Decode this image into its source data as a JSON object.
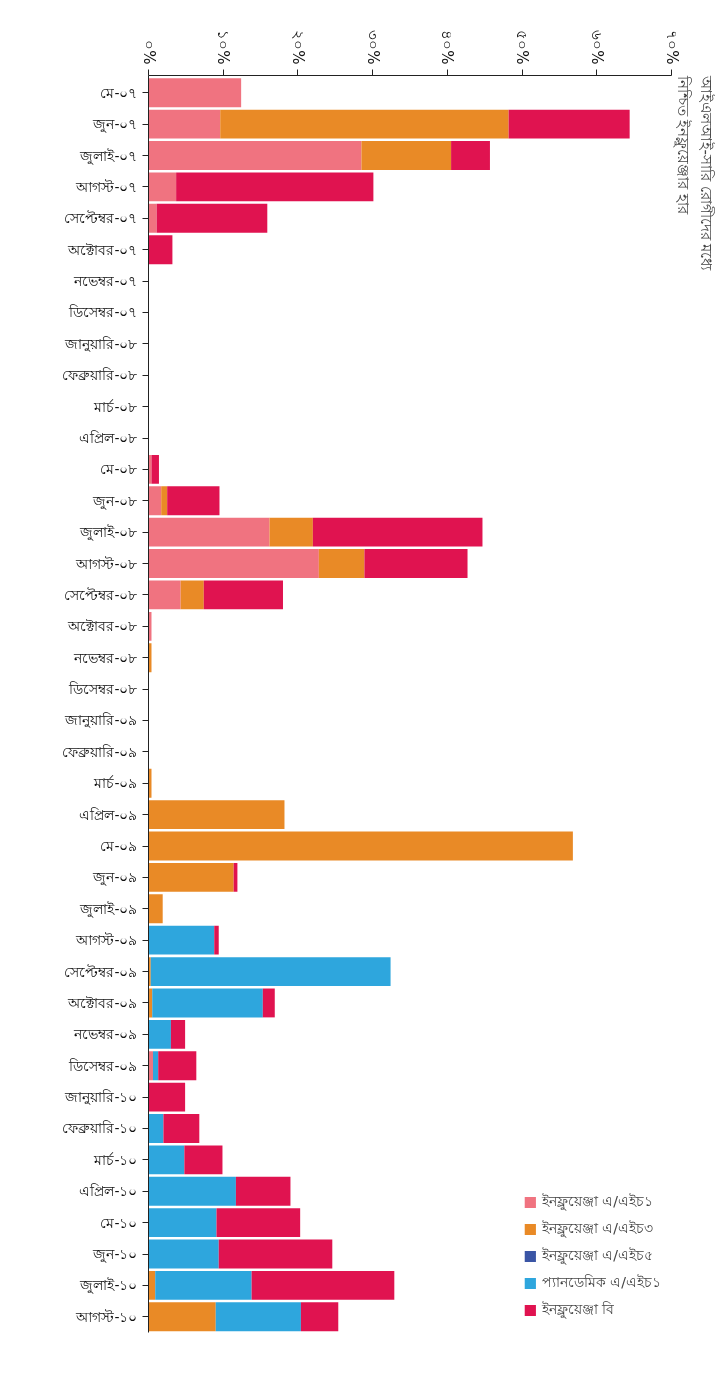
{
  "chart_data": {
    "type": "bar",
    "orientation": "horizontal",
    "stacked": true,
    "title": "আইএলআই-সারি রোগীদের মধ্যে",
    "subtitle": "নিশ্চিত ইনফ্লুয়েঞ্জার হার",
    "categories": [
      "মে-০৭",
      "জুন-০৭",
      "জুলাই-০৭",
      "আগস্ট-০৭",
      "সেপ্টেম্বর-০৭",
      "অক্টোবর-০৭",
      "নভেম্বর-০৭",
      "ডিসেম্বর-০৭",
      "জানুয়ারি-০৮",
      "ফেব্রুয়ারি-০৮",
      "মার্চ-০৮",
      "এপ্রিল-০৮",
      "মে-০৮",
      "জুন-০৮",
      "জুলাই-০৮",
      "আগস্ট-০৮",
      "সেপ্টেম্বর-০৮",
      "অক্টোবর-০৮",
      "নভেম্বর-০৮",
      "ডিসেম্বর-০৮",
      "জানুয়ারি-০৯",
      "ফেব্রুয়ারি-০৯",
      "মার্চ-০৯",
      "এপ্রিল-০৯",
      "মে-০৯",
      "জুন-০৯",
      "জুলাই-০৯",
      "আগস্ট-০৯",
      "সেপ্টেম্বর-০৯",
      "অক্টোবর-০৯",
      "নভেম্বর-০৯",
      "ডিসেম্বর-০৯",
      "জানুয়ারি-১০",
      "ফেব্রুয়ারি-১০",
      "মার্চ-১০",
      "এপ্রিল-১০",
      "মে-১০",
      "জুন-১০",
      "জুলাই-১০",
      "আগস্ট-১০"
    ],
    "series": [
      {
        "name": "ইনফ্লুয়েঞ্জা এ/এইচ১",
        "color": "#f07380",
        "values": [
          12.4,
          9.6,
          28.5,
          3.7,
          1.1,
          0,
          0,
          0,
          0,
          0,
          0,
          0,
          0.4,
          1.7,
          16.2,
          22.8,
          4.3,
          0.4,
          0,
          0,
          0,
          0,
          0,
          0,
          0,
          0,
          0,
          0,
          0,
          0,
          0,
          0.6,
          0,
          0,
          0,
          0,
          0,
          0,
          0,
          0
        ]
      },
      {
        "name": "ইনফ্লুয়েঞ্জা এ/এইচ৩",
        "color": "#e98a26",
        "values": [
          0,
          38.6,
          12.0,
          0,
          0,
          0,
          0,
          0,
          0,
          0,
          0,
          0,
          0,
          0.8,
          5.8,
          6.1,
          3.1,
          0,
          0.4,
          0,
          0,
          0,
          0.4,
          18.2,
          56.8,
          11.4,
          1.9,
          0,
          0.3,
          0.5,
          0,
          0,
          0,
          0,
          0,
          0,
          0,
          0,
          0.9,
          9.0
        ]
      },
      {
        "name": "ইনফ্লুয়েঞ্জা এ/এইচ৫",
        "color": "#3a55a5",
        "values": [
          0,
          0,
          0,
          0,
          0,
          0,
          0,
          0,
          0,
          0,
          0,
          0,
          0,
          0,
          0,
          0,
          0,
          0,
          0,
          0,
          0,
          0,
          0,
          0,
          0,
          0,
          0,
          0,
          0,
          0,
          0,
          0,
          0,
          0,
          0,
          0,
          0,
          0,
          0,
          0
        ]
      },
      {
        "name": "প্যানডেমিক এ/এইচ১",
        "color": "#2ea6dd",
        "values": [
          0,
          0,
          0,
          0,
          0,
          0,
          0,
          0,
          0,
          0,
          0,
          0,
          0,
          0,
          0,
          0,
          0,
          0,
          0,
          0,
          0,
          0,
          0,
          0,
          0,
          0,
          0,
          8.8,
          32.1,
          14.8,
          3.0,
          0.7,
          0,
          2.0,
          4.8,
          11.7,
          9.1,
          9.4,
          12.9,
          11.4
        ]
      },
      {
        "name": "ইনফ্লুয়েঞ্জা বি",
        "color": "#e01350",
        "values": [
          0,
          16.2,
          5.2,
          26.4,
          14.8,
          3.2,
          0,
          0,
          0,
          0,
          0,
          0,
          1.0,
          7.0,
          22.7,
          13.8,
          10.6,
          0,
          0,
          0,
          0,
          0,
          0,
          0,
          0,
          0.5,
          0,
          0.6,
          0,
          1.6,
          1.9,
          5.1,
          4.9,
          4.8,
          5.1,
          7.3,
          11.2,
          15.2,
          19.1,
          5.0
        ]
      }
    ],
    "xlim": [
      0,
      70
    ],
    "xticks": [
      {
        "value": 0,
        "label": "০%"
      },
      {
        "value": 10,
        "label": "১০%"
      },
      {
        "value": 20,
        "label": "২০%"
      },
      {
        "value": 30,
        "label": "৩০%"
      },
      {
        "value": 40,
        "label": "৪০%"
      },
      {
        "value": 50,
        "label": "৫০%"
      },
      {
        "value": 60,
        "label": "৬০%"
      },
      {
        "value": 70,
        "label": "৭০%"
      }
    ],
    "legend": "bottom right"
  }
}
